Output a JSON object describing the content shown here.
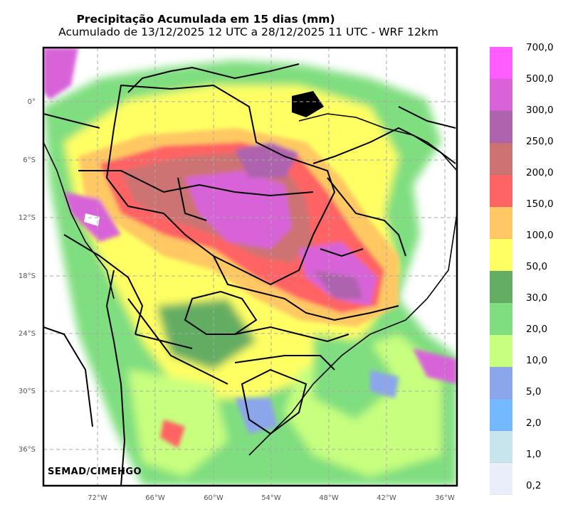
{
  "title": "Precipitação Acumulada em 15 dias (mm)",
  "subtitle": "Acumulado de 13/12/2025 12 UTC a 28/12/2025 11 UTC - WRF 12km",
  "credit": "SEMAD/CIMEHGO",
  "lat_ticks": [
    "0°",
    "6°S",
    "12°S",
    "18°S",
    "24°S",
    "30°S",
    "36°S"
  ],
  "lon_ticks": [
    "72°W",
    "66°W",
    "60°W",
    "54°W",
    "48°W",
    "42°W",
    "36°W"
  ],
  "colorbar": {
    "labels": [
      "700,0",
      "500,0",
      "300,0",
      "250,0",
      "200,0",
      "150,0",
      "100,0",
      "50,0",
      "30,0",
      "20,0",
      "10,0",
      "5,0",
      "2,0",
      "1,0",
      "0,2"
    ],
    "colors": [
      "#ff5cff",
      "#d863d8",
      "#ad64ad",
      "#cd7272",
      "#ff6464",
      "#ffc864",
      "#ffff64",
      "#64ad64",
      "#7fde7f",
      "#c8ff7f",
      "#8ca6ec",
      "#74b8ff",
      "#c8e4ec",
      "#eaeefa"
    ]
  },
  "colors": {
    "ocean": "#ffffff",
    "frame": "#000000",
    "grid": "#aaaaaa"
  }
}
